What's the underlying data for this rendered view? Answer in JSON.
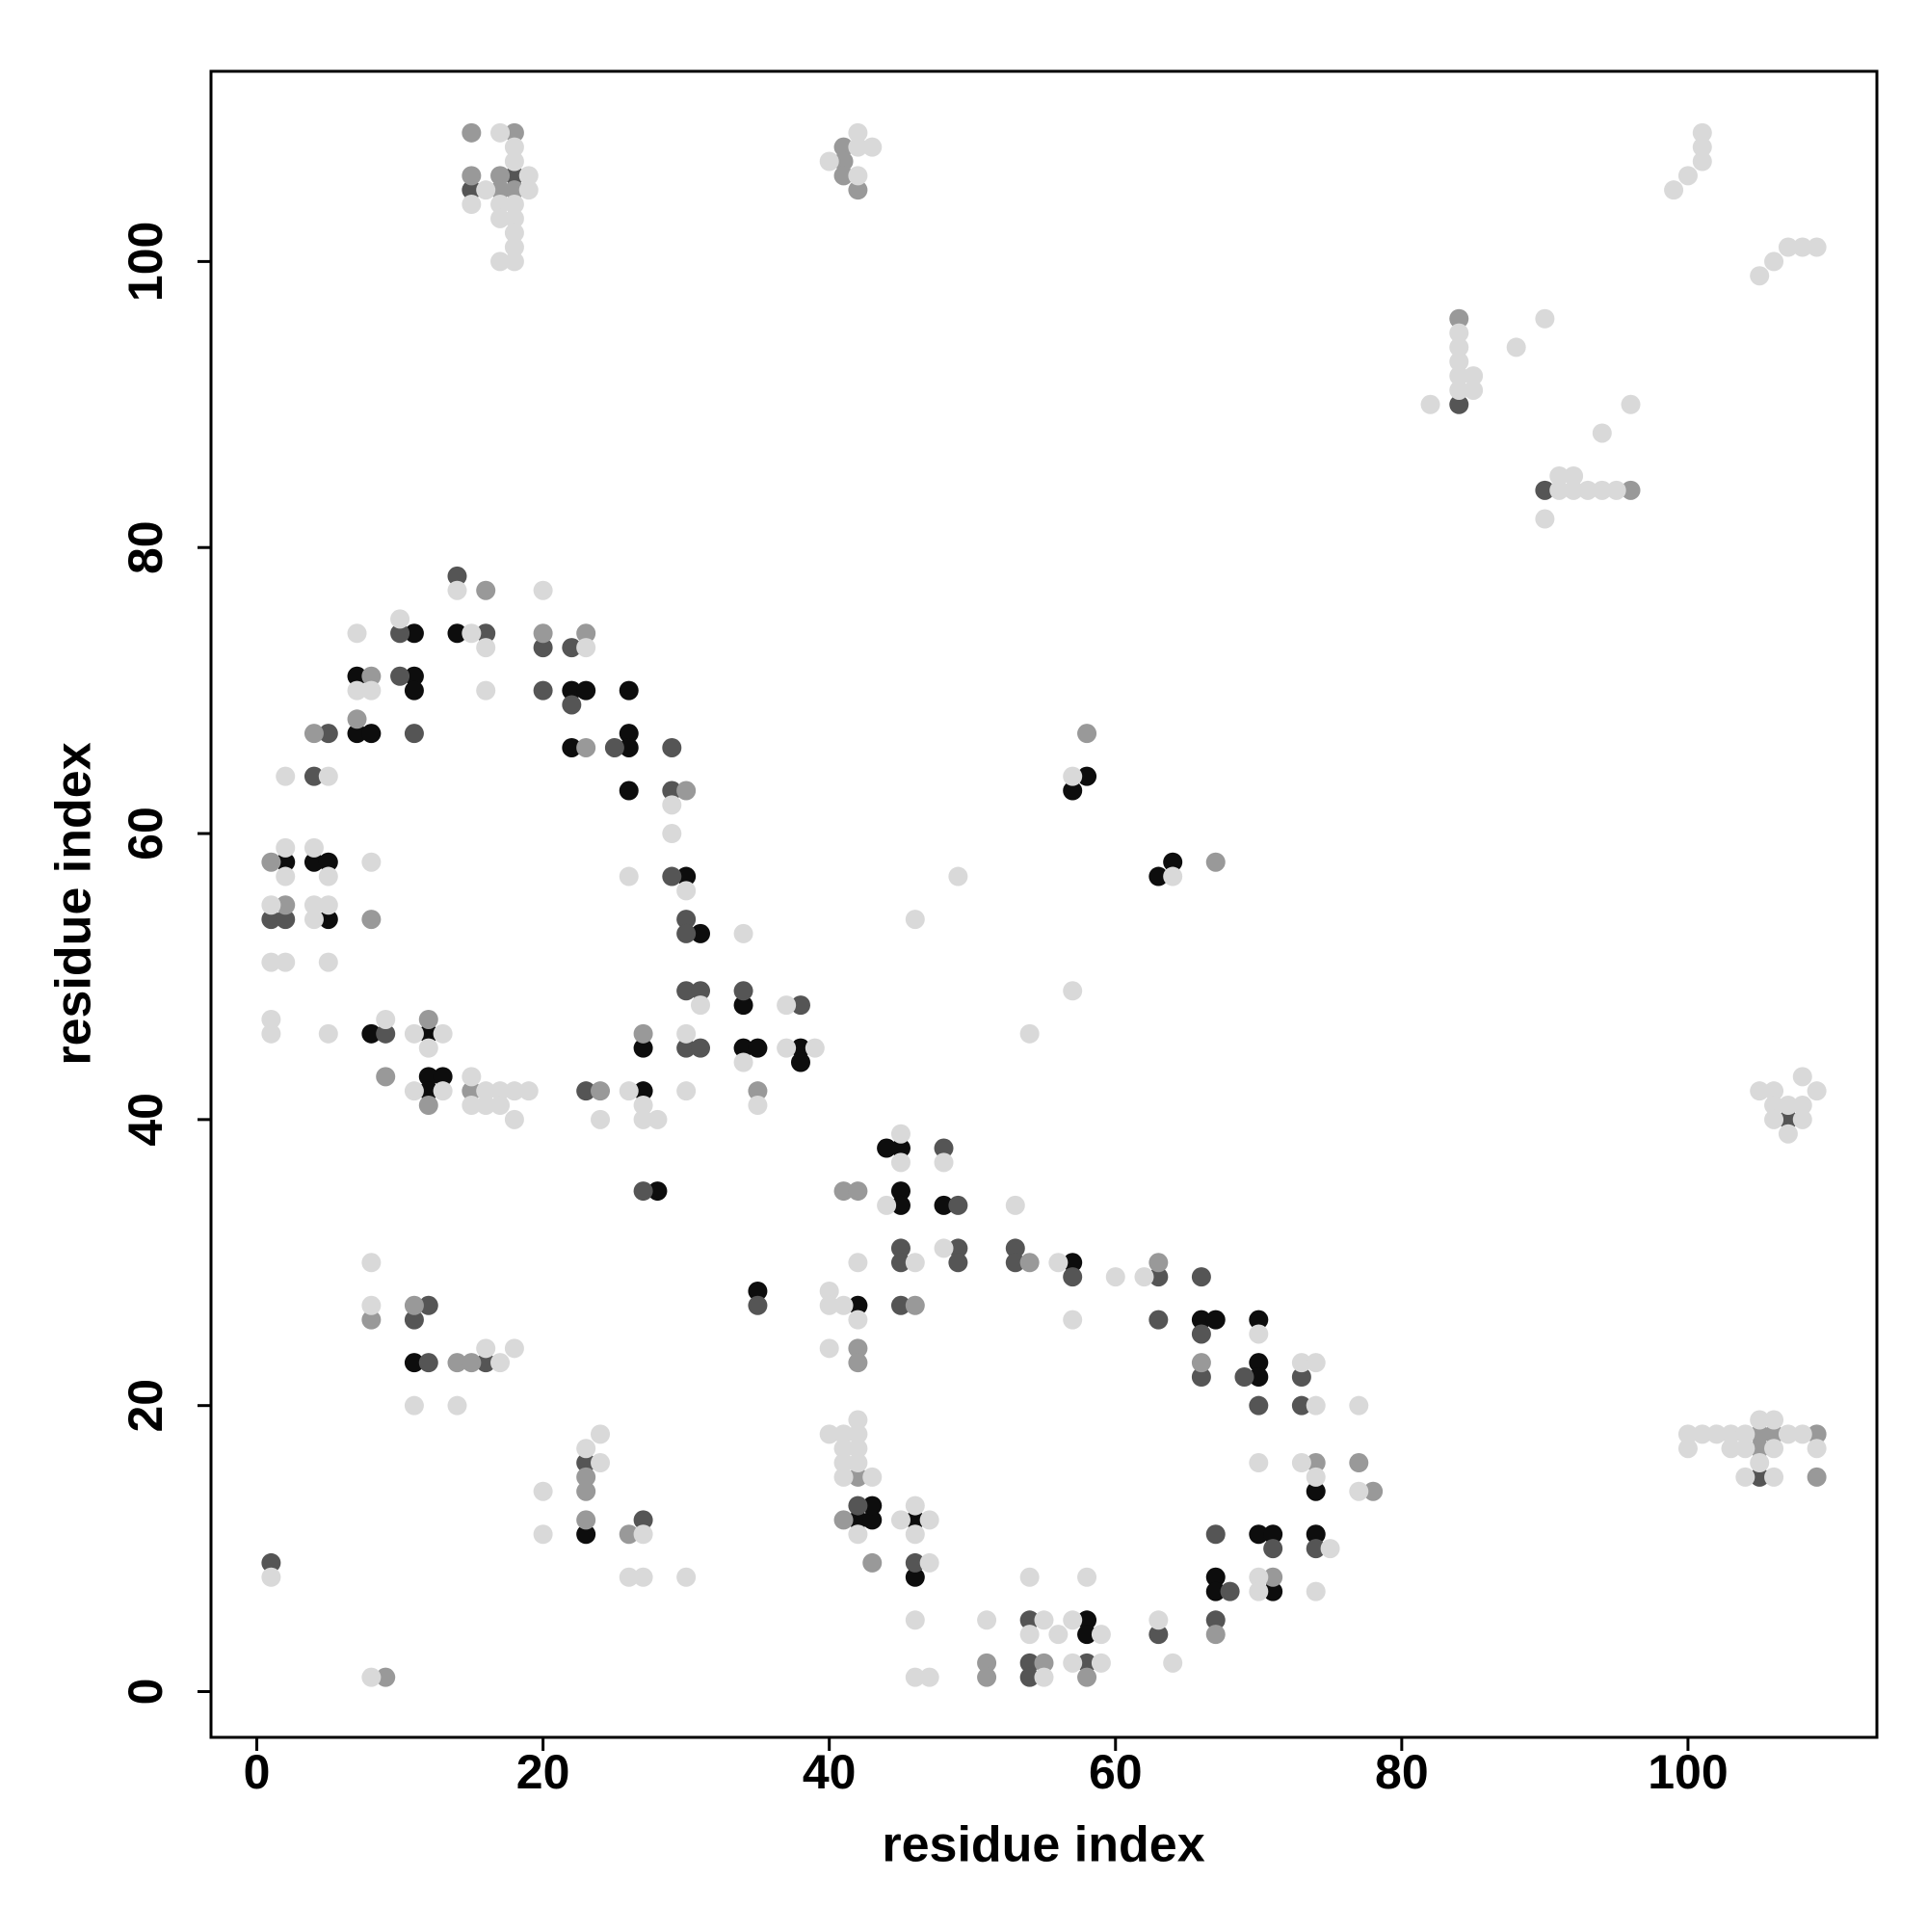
{
  "chart_data": {
    "type": "scatter",
    "xlabel": "residue index",
    "ylabel": "residue index",
    "xlim": [
      -3.2,
      113.2
    ],
    "ylim": [
      -3.2,
      113.3
    ],
    "xticks": [
      0,
      20,
      40,
      60,
      80,
      100
    ],
    "yticks": [
      0,
      20,
      40,
      60,
      80,
      100
    ],
    "series": [
      {
        "color": "#0d0d0d",
        "x": [
          11,
          14,
          7,
          11,
          11,
          22,
          23,
          26,
          7,
          8,
          26,
          22,
          26,
          26,
          2,
          4,
          5,
          30,
          5,
          31,
          34,
          8,
          12,
          27,
          34,
          35,
          38,
          38,
          12,
          13,
          12,
          27,
          28,
          35,
          44,
          45,
          45,
          45,
          48,
          57,
          42,
          66,
          67,
          70,
          70,
          70,
          74,
          42,
          43,
          43,
          46,
          46,
          70,
          71,
          74,
          67,
          67,
          71,
          58,
          58,
          57,
          58,
          63,
          64,
          11,
          23
        ],
        "values": [
          74,
          74,
          71,
          71,
          70,
          70,
          70,
          70,
          67,
          67,
          67,
          66,
          66,
          63,
          58,
          58,
          58,
          57,
          54,
          53,
          48,
          46,
          46,
          45,
          45,
          45,
          45,
          44,
          43,
          43,
          42,
          42,
          35,
          28,
          38,
          38,
          35,
          34,
          34,
          30,
          27,
          26,
          26,
          26,
          23,
          22,
          14,
          12,
          12,
          13,
          12,
          8,
          11,
          11,
          11,
          8,
          7,
          7,
          5,
          4,
          63,
          64,
          57,
          58,
          23,
          11
        ]
      },
      {
        "color": "#555555",
        "x": [
          15,
          18,
          84,
          90,
          105,
          14,
          10,
          16,
          20,
          22,
          10,
          20,
          22,
          11,
          5,
          25,
          29,
          4,
          29,
          29,
          1,
          2,
          30,
          30,
          30,
          31,
          34,
          38,
          9,
          30,
          31,
          23,
          27,
          35,
          48,
          49,
          45,
          49,
          45,
          49,
          53,
          53,
          57,
          63,
          66,
          45,
          63,
          66,
          66,
          69,
          73,
          70,
          73,
          42,
          46,
          67,
          71,
          74,
          68,
          54,
          63,
          67,
          54,
          58,
          54,
          12,
          11,
          12,
          16,
          23,
          27,
          1,
          107
        ],
        "values": [
          105,
          106,
          90,
          84,
          15,
          78,
          74,
          74,
          73,
          73,
          71,
          70,
          69,
          67,
          67,
          66,
          66,
          64,
          63,
          57,
          54,
          54,
          54,
          53,
          49,
          49,
          49,
          48,
          46,
          45,
          45,
          42,
          35,
          27,
          38,
          34,
          31,
          31,
          30,
          30,
          31,
          30,
          29,
          29,
          29,
          27,
          26,
          25,
          22,
          22,
          22,
          20,
          20,
          13,
          9,
          11,
          10,
          10,
          7,
          5,
          4,
          5,
          2,
          2,
          1,
          27,
          26,
          23,
          23,
          16,
          12,
          9,
          40
        ]
      },
      {
        "color": "#999999",
        "x": [
          15,
          15,
          18,
          17,
          18,
          17,
          41,
          41,
          41,
          42,
          84,
          96,
          105,
          105,
          106,
          109,
          109,
          16,
          20,
          23,
          8,
          7,
          4,
          23,
          30,
          1,
          2,
          8,
          12,
          27,
          9,
          12,
          15,
          24,
          35,
          41,
          42,
          54,
          63,
          46,
          42,
          42,
          66,
          74,
          77,
          78,
          42,
          41,
          43,
          71,
          67,
          51,
          55,
          51,
          58,
          58,
          67,
          8,
          11,
          14,
          15,
          23,
          23,
          23,
          26,
          9
        ],
        "values": [
          109,
          106,
          109,
          106,
          105,
          105,
          108,
          107,
          106,
          105,
          96,
          84,
          18,
          17,
          18,
          18,
          15,
          77,
          74,
          74,
          71,
          68,
          67,
          66,
          63,
          58,
          55,
          54,
          47,
          46,
          43,
          41,
          42,
          42,
          42,
          35,
          35,
          30,
          30,
          27,
          24,
          23,
          23,
          16,
          16,
          14,
          15,
          12,
          9,
          8,
          4,
          2,
          2,
          1,
          1,
          67,
          58,
          26,
          27,
          23,
          23,
          15,
          14,
          12,
          11,
          1
        ]
      },
      {
        "color": "#d9d9d9",
        "x": [
          15,
          17,
          16,
          19,
          19,
          17,
          18,
          17,
          18,
          18,
          18,
          17,
          18,
          18,
          18,
          40,
          42,
          42,
          42,
          43,
          99,
          100,
          101,
          101,
          101,
          105,
          106,
          107,
          108,
          109,
          84,
          84,
          84,
          84,
          84,
          85,
          85,
          82,
          88,
          90,
          96,
          94,
          91,
          92,
          91,
          92,
          93,
          94,
          95,
          90,
          105,
          106,
          106,
          106,
          107,
          108,
          108,
          108,
          109,
          107,
          100,
          100,
          101,
          102,
          103,
          103,
          104,
          104,
          105,
          105,
          104,
          106,
          106,
          106,
          107,
          108,
          109,
          14,
          10,
          7,
          15,
          16,
          20,
          23,
          7,
          8,
          16,
          2,
          5,
          29,
          29,
          2,
          4,
          8,
          2,
          5,
          26,
          30,
          1,
          4,
          5,
          4,
          1,
          2,
          5,
          31,
          34,
          37,
          1,
          1,
          5,
          9,
          11,
          13,
          12,
          30,
          34,
          37,
          39,
          11,
          13,
          15,
          15,
          16,
          16,
          17,
          17,
          18,
          18,
          19,
          24,
          26,
          27,
          27,
          28,
          30,
          35,
          45,
          45,
          48,
          44,
          48,
          46,
          53,
          56,
          60,
          62,
          42,
          40,
          40,
          41,
          42,
          57,
          70,
          40,
          73,
          74,
          74,
          77,
          40,
          41,
          42,
          42,
          41,
          42,
          41,
          42,
          41,
          43,
          70,
          73,
          74,
          77,
          42,
          45,
          46,
          47,
          46,
          47,
          75,
          70,
          70,
          74,
          46,
          51,
          55,
          57,
          54,
          56,
          59,
          63,
          57,
          59,
          64,
          46,
          47,
          55,
          54,
          58,
          57,
          64,
          49,
          46,
          57,
          54,
          8,
          8,
          16,
          17,
          18,
          11,
          14,
          24,
          23,
          24,
          20,
          20,
          27,
          26,
          27,
          30,
          1,
          8
        ],
        "values": [
          104,
          109,
          105,
          106,
          105,
          104,
          104,
          103,
          103,
          102,
          101,
          100,
          100,
          108,
          107,
          107,
          109,
          108,
          106,
          108,
          105,
          106,
          109,
          108,
          107,
          99,
          100,
          101,
          101,
          101,
          95,
          94,
          93,
          92,
          91,
          92,
          91,
          90,
          94,
          96,
          90,
          88,
          85,
          85,
          84,
          84,
          84,
          84,
          84,
          82,
          42,
          42,
          41,
          40,
          41,
          41,
          40,
          43,
          42,
          39,
          18,
          17,
          18,
          18,
          18,
          17,
          18,
          17,
          19,
          16,
          15,
          19,
          17,
          15,
          18,
          18,
          17,
          77,
          75,
          74,
          74,
          73,
          77,
          73,
          70,
          70,
          70,
          64,
          64,
          62,
          60,
          59,
          59,
          58,
          57,
          57,
          57,
          56,
          55,
          55,
          55,
          54,
          51,
          51,
          51,
          48,
          53,
          48,
          47,
          46,
          46,
          47,
          46,
          46,
          45,
          46,
          44,
          45,
          45,
          42,
          42,
          43,
          41,
          42,
          41,
          42,
          41,
          42,
          40,
          42,
          40,
          42,
          41,
          40,
          40,
          42,
          41,
          39,
          37,
          37,
          34,
          31,
          30,
          34,
          30,
          29,
          29,
          30,
          28,
          27,
          27,
          26,
          26,
          25,
          24,
          23,
          23,
          20,
          20,
          18,
          18,
          19,
          18,
          17,
          17,
          16,
          16,
          15,
          15,
          16,
          16,
          15,
          14,
          11,
          12,
          13,
          12,
          11,
          9,
          10,
          8,
          7,
          7,
          5,
          5,
          5,
          5,
          4,
          4,
          4,
          5,
          2,
          2,
          2,
          1,
          1,
          1,
          8,
          8,
          64,
          57,
          57,
          54,
          49,
          46,
          30,
          27,
          24,
          23,
          24,
          20,
          20,
          18,
          17,
          16,
          14,
          11,
          11,
          8,
          8,
          8,
          8,
          1
        ]
      }
    ]
  }
}
